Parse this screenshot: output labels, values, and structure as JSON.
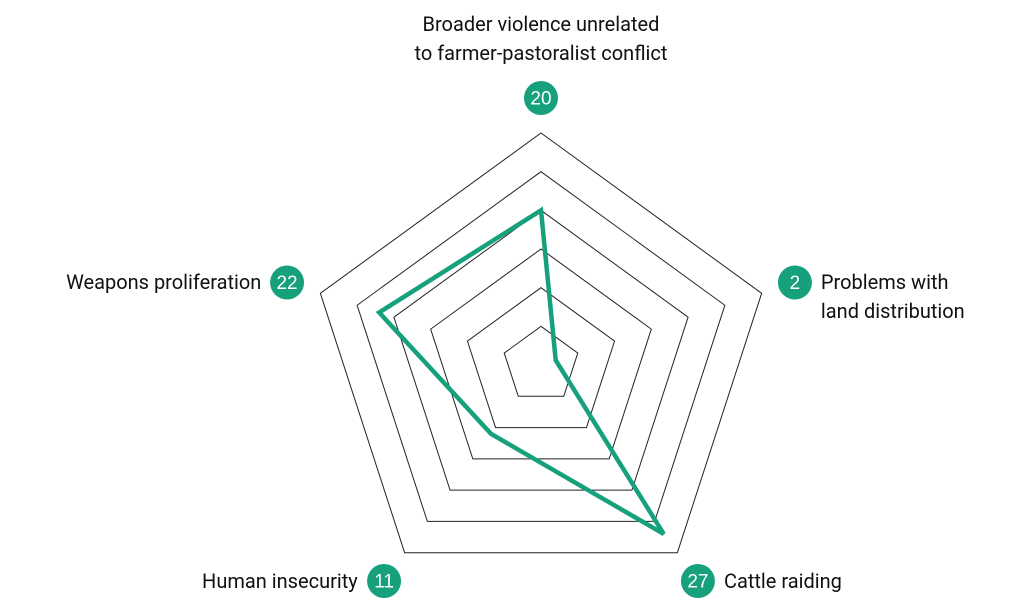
{
  "chart_data": {
    "type": "radar",
    "categories": [
      "Broader violence unrelated\nto farmer-pastoralist conflict",
      "Problems with\nland distribution",
      "Cattle raiding",
      "Human insecurity",
      "Weapons proliferation"
    ],
    "values": [
      20,
      2,
      27,
      11,
      22
    ],
    "color": "#16a07c",
    "ylim": [
      0,
      30
    ],
    "yticks": [
      5,
      10,
      15,
      20,
      25,
      30
    ],
    "grid": true
  }
}
